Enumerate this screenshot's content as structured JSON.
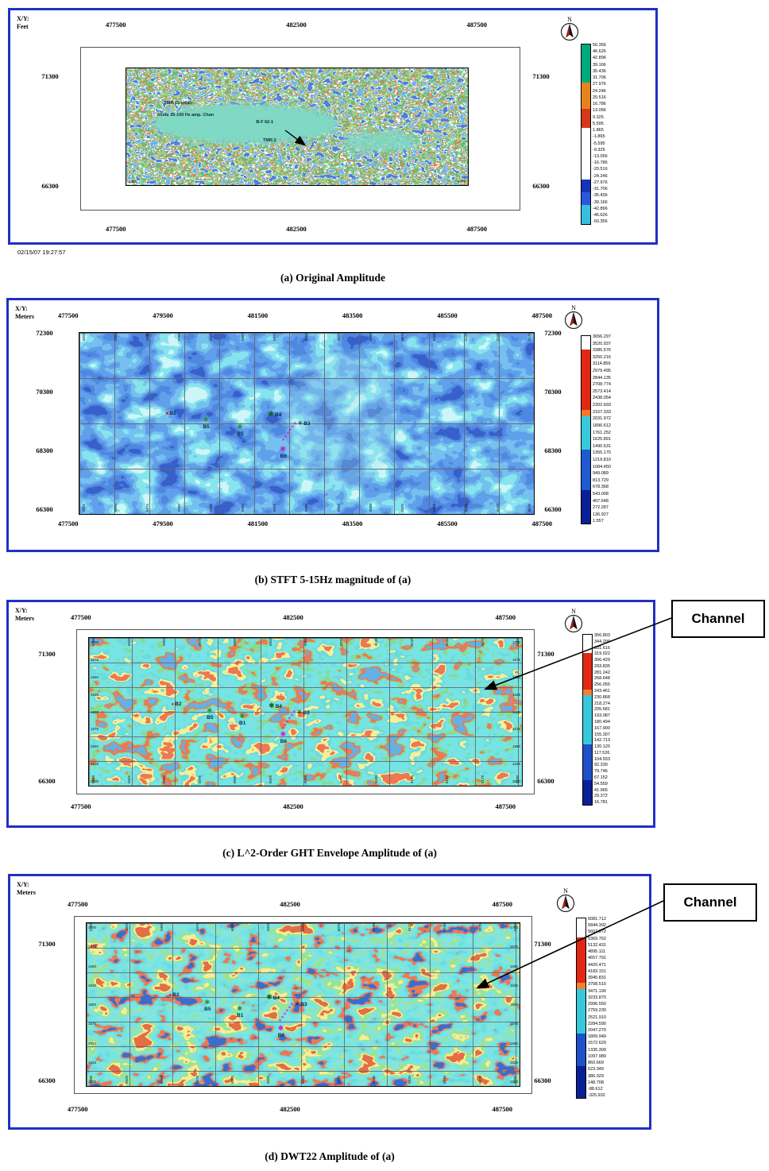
{
  "figure": {
    "north_label": "N",
    "channel_label": "Channel"
  },
  "wells": [
    {
      "id": "B2"
    },
    {
      "id": "B5"
    },
    {
      "id": "B1"
    },
    {
      "id": "B4"
    },
    {
      "id": "B3"
    },
    {
      "id": "B6"
    }
  ],
  "panels": {
    "a": {
      "xy_line1": "X/Y:",
      "xy_line2": "Feet",
      "x_coords": [
        "477500",
        "482500",
        "487500"
      ],
      "y_coords": [
        "71300",
        "66300"
      ],
      "corner_ticks": [
        "1480",
        "4480"
      ],
      "annotations": {
        "text1": "TMR-15 clean",
        "text2": "crude 35-100 Hz amp. Chan",
        "well_a": "B-F 62-1",
        "well_b": "TMR-2"
      },
      "timestamp": "02/15/07  19:27:57",
      "caption": "(a) Original Amplitude",
      "colorbar": {
        "labels": [
          "50.356",
          "46.626",
          "42.896",
          "39.166",
          "35.436",
          "31.706",
          "27.976",
          "24.246",
          "20.516",
          "16.786",
          "13.056",
          "9.325",
          "5.595",
          "1.865",
          "-1.865",
          "-5.595",
          "-9.325",
          "-13.056",
          "-16.786",
          "-20.516",
          "-24.246",
          "-27.976",
          "-31.706",
          "-35.436",
          "-39.166",
          "-42.896",
          "-46.626",
          "-50.356"
        ],
        "colors": [
          "#00AA7E",
          "#00AA7E",
          "#00AA7E",
          "#00AA7E",
          "#00AA7E",
          "#00AA7E",
          "#E8821E",
          "#E8821E",
          "#E8821E",
          "#E8821E",
          "#D4391A",
          "#D4391A",
          "#D4391A",
          "#FFFFFF",
          "#FFFFFF",
          "#FFFFFF",
          "#FFFFFF",
          "#FFFFFF",
          "#FFFFFF",
          "#FFFFFF",
          "#FFFFFF",
          "#1733B8",
          "#1733B8",
          "#2B57DC",
          "#2B57DC",
          "#38BEE0",
          "#38BEE0",
          "#38BEE0"
        ]
      }
    },
    "b": {
      "xy_line1": "X/Y:",
      "xy_line2": "Meters",
      "x_coords": [
        "477500",
        "479500",
        "481500",
        "483500",
        "485500",
        "487500"
      ],
      "y_coords": [
        "72300",
        "70300",
        "68300",
        "66300"
      ],
      "edge_ticks_x": [
        "5825",
        "5850",
        "5875",
        "5900",
        "5925",
        "5950",
        "5975",
        "6000",
        "6025",
        "6050",
        "6075",
        "6100",
        "6125",
        "6150",
        "6175"
      ],
      "caption": "(b) STFT 5-15Hz magnitude of (a)",
      "colorbar": {
        "labels": [
          "3656.297",
          "3520.937",
          "3385.576",
          "3250.216",
          "3114.856",
          "2979.495",
          "2844.135",
          "2708.774",
          "2573.414",
          "2438.054",
          "2302.693",
          "2167.333",
          "2031.972",
          "1896.612",
          "1761.252",
          "1625.891",
          "1490.531",
          "1355.170",
          "1219.810",
          "1084.450",
          "949.089",
          "813.729",
          "678.368",
          "543.008",
          "407.648",
          "272.287",
          "136.927",
          "1.557"
        ],
        "colors": [
          "#FFFFFF",
          "#FFFFFF",
          "#E02814",
          "#E02814",
          "#E02814",
          "#E02814",
          "#E02814",
          "#E02814",
          "#E02814",
          "#E02814",
          "#E02814",
          "#F07830",
          "#38C8DC",
          "#38C8DC",
          "#38C8DC",
          "#38C8DC",
          "#38C8DC",
          "#1E5AD2",
          "#1E5AD2",
          "#1E5AD2",
          "#1E5AD2",
          "#1E5AD2",
          "#1E5AD2",
          "#0A1E96",
          "#0A1E96",
          "#0A1E96",
          "#0A1E96",
          "#0A1E96"
        ]
      }
    },
    "c": {
      "xy_line1": "X/Y:",
      "xy_line2": "Meters",
      "x_coords": [
        "477500",
        "482500",
        "487500"
      ],
      "y_coords": [
        "71300",
        "66300"
      ],
      "edge_ticks_x": [
        "5900",
        "5925",
        "5950",
        "5975",
        "6000",
        "6025",
        "6050",
        "6075",
        "6100",
        "6125",
        "6150",
        "6175",
        "6200"
      ],
      "edge_ticks_y": [
        "1700",
        "1675",
        "1650",
        "1625",
        "1600",
        "1575",
        "1550",
        "1525",
        "1500"
      ],
      "caption": "(c) L^2-Order GHT Envelope Amplitude of (a)",
      "colorbar": {
        "labels": [
          "356.803",
          "344.209",
          "331.616",
          "319.022",
          "306.429",
          "293.835",
          "281.242",
          "268.648",
          "256.055",
          "243.461",
          "230.868",
          "218.274",
          "205.681",
          "193.087",
          "180.494",
          "167.900",
          "155.307",
          "142.713",
          "130.120",
          "117.526",
          "104.933",
          "92.339",
          "79.746",
          "67.152",
          "54.559",
          "41.965",
          "29.372",
          "16.781"
        ],
        "colors": [
          "#FFFFFF",
          "#FFFFFF",
          "#FFFFFF",
          "#E02814",
          "#E02814",
          "#E02814",
          "#E02814",
          "#E02814",
          "#E02814",
          "#F08030",
          "#38C8DC",
          "#38C8DC",
          "#38C8DC",
          "#38C8DC",
          "#38C8DC",
          "#38C8DC",
          "#38C8DC",
          "#38C8DC",
          "#1E50C8",
          "#1E50C8",
          "#1E50C8",
          "#1E50C8",
          "#1E50C8",
          "#1E50C8",
          "#0A1E96",
          "#0A1E96",
          "#0A1E96",
          "#0A1E96"
        ]
      }
    },
    "d": {
      "xy_line1": "X/Y:",
      "xy_line2": "Meters",
      "x_coords": [
        "477500",
        "482500",
        "487500"
      ],
      "y_coords": [
        "71300",
        "66300"
      ],
      "edge_ticks_x": [
        "5900",
        "5925",
        "5950",
        "5975",
        "6000",
        "6025",
        "6050",
        "6075",
        "6100",
        "6125",
        "6150",
        "6175",
        "6200"
      ],
      "edge_ticks_y": [
        "1700",
        "1675",
        "1650",
        "1625",
        "1600",
        "1575",
        "1550",
        "1525",
        "1500"
      ],
      "caption": "(d) DWT22 Amplitude of (a)",
      "colorbar": {
        "labels": [
          "6081.712",
          "5844.392",
          "5607.072",
          "5369.752",
          "5132.431",
          "4895.111",
          "4657.791",
          "4420.471",
          "4183.151",
          "3945.831",
          "3708.510",
          "3471.190",
          "3233.870",
          "2996.550",
          "2759.230",
          "2521.910",
          "2284.590",
          "2047.270",
          "1809.949",
          "1572.629",
          "1335.309",
          "1097.989",
          "860.669",
          "623.349",
          "386.029",
          "148.708",
          "-88.612",
          "-325.932"
        ],
        "colors": [
          "#FFFFFF",
          "#FFFFFF",
          "#FFFFFF",
          "#E02814",
          "#E02814",
          "#E02814",
          "#E02814",
          "#E02814",
          "#E02814",
          "#E02814",
          "#F08030",
          "#38C8DC",
          "#38C8DC",
          "#38C8DC",
          "#38C8DC",
          "#38C8DC",
          "#38C8DC",
          "#38C8DC",
          "#1E50C8",
          "#1E50C8",
          "#1E50C8",
          "#1E50C8",
          "#1E50C8",
          "#0A1E96",
          "#0A1E96",
          "#0A1E96",
          "#0A1E96",
          "#0A1E96"
        ]
      }
    }
  }
}
